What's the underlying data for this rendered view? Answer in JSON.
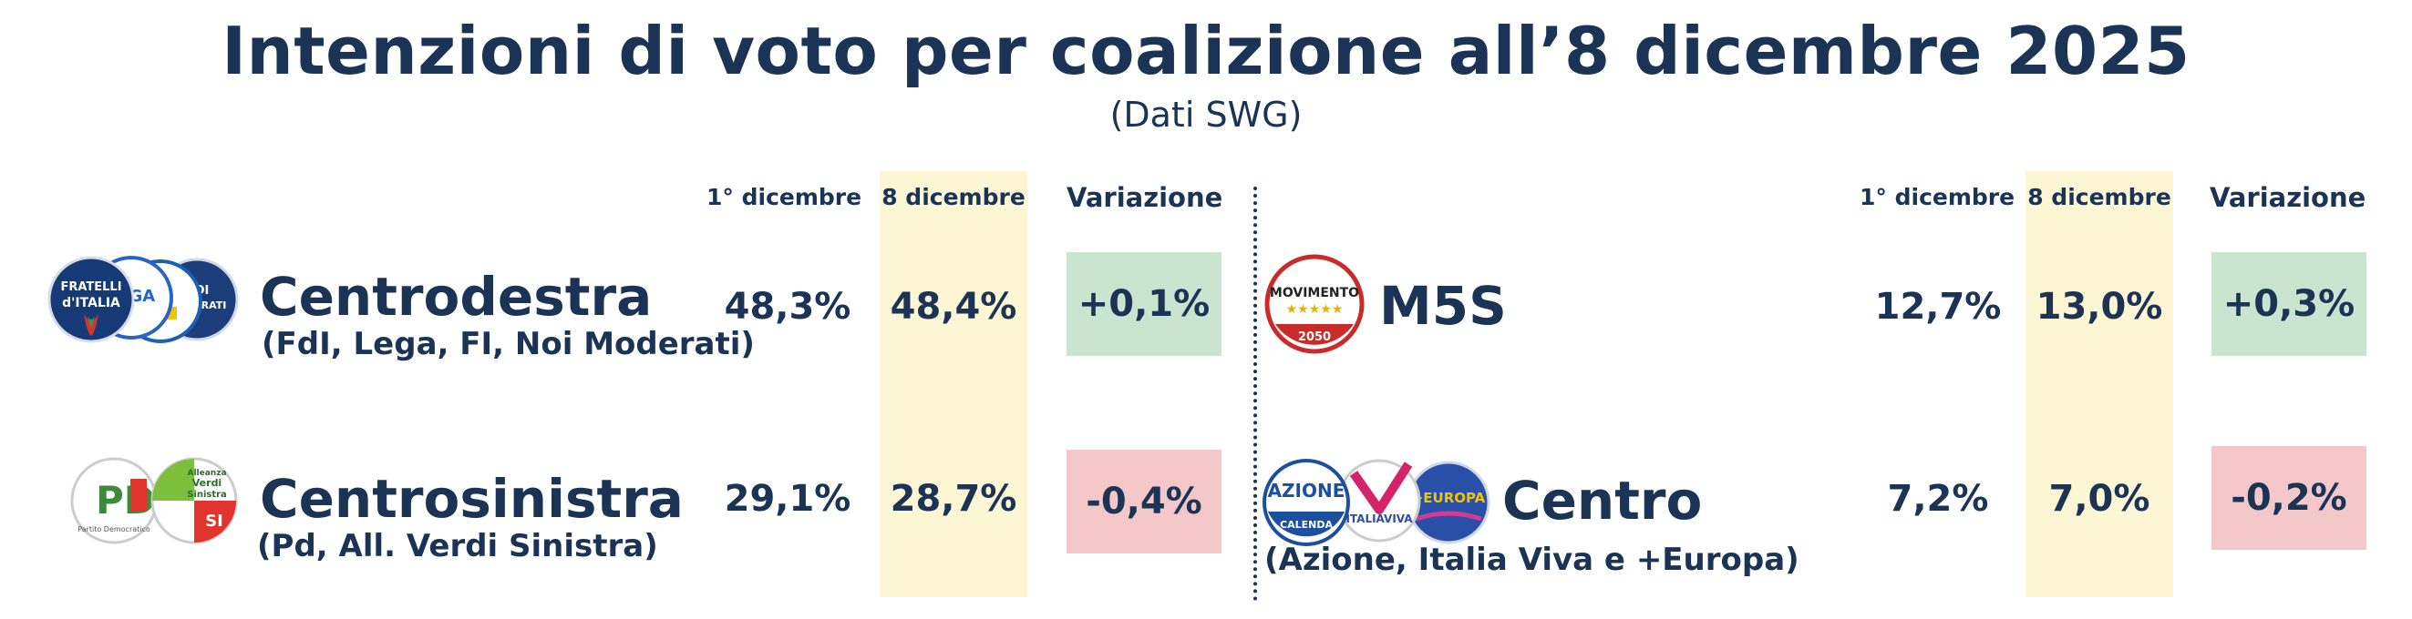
{
  "title": "Intenzioni di voto per coalizione all’8 dicembre 2025",
  "subtitle": "(Dati SWG)",
  "columns": {
    "previous": "1° dicembre",
    "current": "8 dicembre",
    "change": "Variazione"
  },
  "colors": {
    "text": "#1b3355",
    "current_column": "#fdf6d5",
    "positive_change": "#c9e5cf",
    "negative_change": "#f4c7c9"
  },
  "chart_data": {
    "type": "table",
    "title": "Intenzioni di voto per coalizione all’8 dicembre 2025",
    "subtitle": "(Dati SWG)",
    "columns": [
      "1° dicembre",
      "8 dicembre",
      "Variazione"
    ],
    "rows": [
      {
        "name": "Centrodestra",
        "members": "(FdI, Lega, FI, Noi Moderati)",
        "previous": "48,3%",
        "current": "48,4%",
        "change": "+0,1%",
        "previous_value": 48.3,
        "current_value": 48.4,
        "change_value": 0.1,
        "logos": [
          "fdi-logo",
          "lega-logo",
          "fi-logo",
          "noi-moderati-logo"
        ]
      },
      {
        "name": "Centrosinistra",
        "members": "(Pd, All. Verdi Sinistra)",
        "previous": "29,1%",
        "current": "28,7%",
        "change": "-0,4%",
        "previous_value": 29.1,
        "current_value": 28.7,
        "change_value": -0.4,
        "logos": [
          "pd-logo",
          "avs-logo"
        ]
      },
      {
        "name": "M5S",
        "members": "",
        "previous": "12,7%",
        "current": "13,0%",
        "change": "+0,3%",
        "previous_value": 12.7,
        "current_value": 13.0,
        "change_value": 0.3,
        "logos": [
          "m5s-logo"
        ]
      },
      {
        "name": "Centro",
        "members": "(Azione, Italia Viva e +Europa)",
        "previous": "7,2%",
        "current": "7,0%",
        "change": "-0,2%",
        "previous_value": 7.2,
        "current_value": 7.0,
        "change_value": -0.2,
        "logos": [
          "azione-logo",
          "italia-viva-logo",
          "piu-europa-logo"
        ]
      }
    ]
  },
  "logo_text": {
    "fdi": [
      "FRATELLI",
      "d'ITALIA"
    ],
    "lega": "LEGA",
    "fi": "FI",
    "nm": [
      "NOI",
      "MODERATI"
    ],
    "pd": [
      "PD",
      "Partito Democratico"
    ],
    "avs": [
      "Alleanza",
      "Verdi",
      "Sinistra",
      "SI"
    ],
    "m5s": [
      "MOVIMENTO",
      "2050"
    ],
    "azione": [
      "AZIONE",
      "CALENDA"
    ],
    "iv": "ITALIAVIVA",
    "piu_europa": "+EUROPA"
  }
}
